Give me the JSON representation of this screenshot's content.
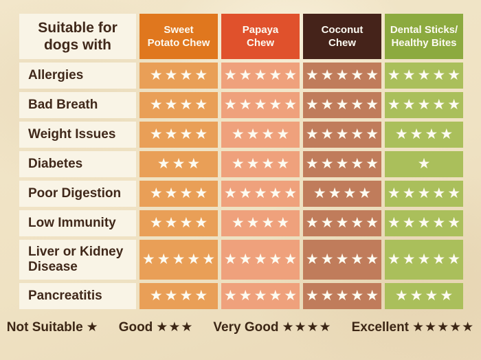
{
  "table": {
    "title": "Suitable for\ndogs with",
    "products": [
      {
        "name": "sweet-potato-chew",
        "label": "Sweet\nPotato Chew",
        "header_bg": "#e0771e",
        "cell_bg": "#e99f57"
      },
      {
        "name": "papaya-chew",
        "label": "Papaya\nChew",
        "header_bg": "#e0512c",
        "cell_bg": "#efa17c"
      },
      {
        "name": "coconut-chew",
        "label": "Coconut\nChew",
        "header_bg": "#45231a",
        "cell_bg": "#c07c5b"
      },
      {
        "name": "dental-sticks-healthy-bites",
        "label": "Dental Sticks/\nHealthy Bites",
        "header_bg": "#8caa3f",
        "cell_bg": "#aabf5b"
      }
    ]
  },
  "chart_data": {
    "type": "table",
    "title": "Suitable for dogs with",
    "columns": [
      "Sweet Potato Chew",
      "Papaya Chew",
      "Coconut Chew",
      "Dental Sticks/Healthy Bites"
    ],
    "rating_scale": {
      "1": "Not Suitable",
      "3": "Good",
      "4": "Very Good",
      "5": "Excellent"
    },
    "rows": [
      {
        "condition": "Allergies",
        "ratings": [
          4,
          5,
          5,
          5
        ]
      },
      {
        "condition": "Bad Breath",
        "ratings": [
          4,
          5,
          5,
          5
        ]
      },
      {
        "condition": "Weight Issues",
        "ratings": [
          4,
          4,
          5,
          4
        ]
      },
      {
        "condition": "Diabetes",
        "ratings": [
          3,
          4,
          5,
          1
        ]
      },
      {
        "condition": "Poor Digestion",
        "ratings": [
          4,
          5,
          4,
          5
        ]
      },
      {
        "condition": "Low Immunity",
        "ratings": [
          4,
          4,
          5,
          5
        ]
      },
      {
        "condition": "Liver or Kidney Disease",
        "ratings": [
          5,
          5,
          5,
          5
        ]
      },
      {
        "condition": "Pancreatitis",
        "ratings": [
          4,
          5,
          5,
          4
        ]
      }
    ]
  },
  "legend": {
    "items": [
      {
        "label": "Not Suitable",
        "stars": 1
      },
      {
        "label": "Good",
        "stars": 3
      },
      {
        "label": "Very Good",
        "stars": 4
      },
      {
        "label": "Excellent",
        "stars": 5
      }
    ]
  },
  "colors": {
    "background": "#efe2c4",
    "label_cell_bg": "#f9f4e6",
    "ink": "#40281a",
    "star_white": "#fdfbf1"
  },
  "star_glyph": "★"
}
